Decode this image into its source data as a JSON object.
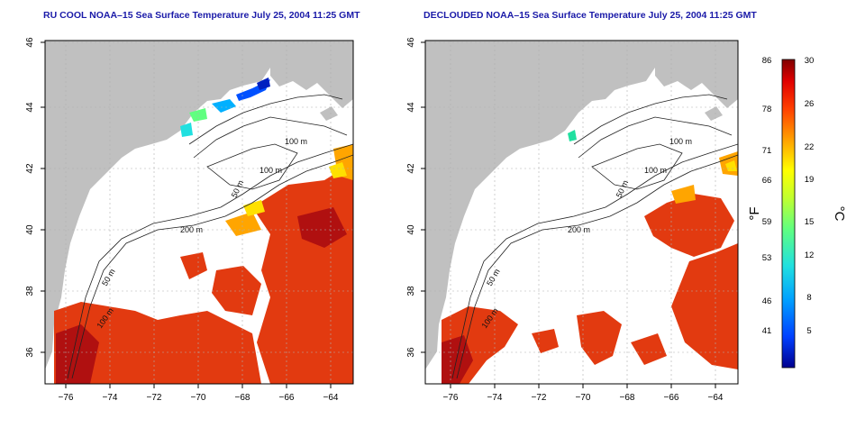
{
  "panels": [
    {
      "title": "RU COOL NOAA–15 Sea Surface Temperature July 25, 2004 11:25 GMT",
      "contour_labels": [
        "100 m",
        "100 m",
        "50 m",
        "200 m",
        "50 m",
        "100 m"
      ]
    },
    {
      "title": "DECLOUDED NOAA–15 Sea Surface Temperature July 25, 2004 11:25 GMT",
      "contour_labels": [
        "100 m",
        "100 m",
        "50 m",
        "200 m",
        "50 m",
        "100 m"
      ]
    }
  ],
  "axes": {
    "x_ticks": [
      "−76",
      "−74",
      "−72",
      "−70",
      "−68",
      "−66",
      "−64"
    ],
    "y_ticks": [
      "46",
      "44",
      "42",
      "40",
      "38",
      "36"
    ]
  },
  "colorbar": {
    "fahrenheit_label": "°F",
    "celsius_label": "°C",
    "fahrenheit_ticks": [
      "86",
      "78",
      "71",
      "66",
      "59",
      "53",
      "46",
      "41"
    ],
    "celsius_ticks": [
      "30",
      "26",
      "22",
      "19",
      "15",
      "12",
      "8",
      "5"
    ]
  },
  "colors": {
    "land": "#c0c0c0",
    "ocean": "#ffffff",
    "warm": "#e23a10",
    "hot": "#b01010",
    "title": "#1a1aa8",
    "contour": "#222222",
    "grid": "#b0b0b0"
  }
}
